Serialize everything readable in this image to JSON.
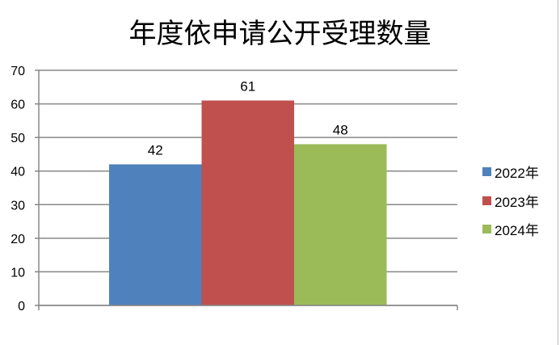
{
  "chart_data": {
    "type": "bar",
    "title": "年度依申请公开受理数量",
    "categories": [
      ""
    ],
    "series": [
      {
        "name": "2022年",
        "values": [
          42
        ],
        "color": "#4F81BD"
      },
      {
        "name": "2023年",
        "values": [
          61
        ],
        "color": "#C0504D"
      },
      {
        "name": "2024年",
        "values": [
          48
        ],
        "color": "#9BBB59"
      }
    ],
    "ylim": [
      0,
      70
    ],
    "yticks": [
      "0",
      "10",
      "20",
      "30",
      "40",
      "50",
      "60",
      "70"
    ],
    "data_labels": [
      "42",
      "61",
      "48"
    ],
    "grid": true,
    "legend": "right"
  }
}
